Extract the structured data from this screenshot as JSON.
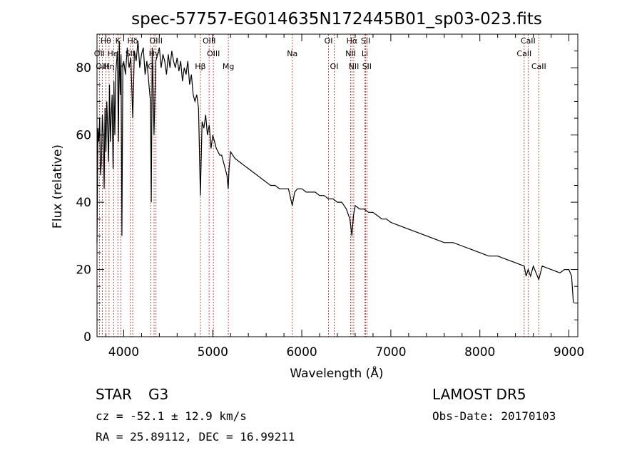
{
  "chart_data": {
    "type": "line",
    "title": "spec-57757-EG014635N172445B01_sp03-023.fits",
    "xlabel": "Wavelength (Å)",
    "ylabel": "Flux (relative)",
    "xlim": [
      3700,
      9100
    ],
    "ylim": [
      0,
      90
    ],
    "xticks": [
      4000,
      5000,
      6000,
      7000,
      8000,
      9000
    ],
    "yticks": [
      0,
      20,
      40,
      60,
      80
    ],
    "grid": false,
    "line_color": "#000000",
    "marker_color": "#b22222",
    "series": [
      {
        "x": [
          3700,
          3710,
          3720,
          3730,
          3740,
          3750,
          3760,
          3770,
          3780,
          3790,
          3800,
          3810,
          3820,
          3830,
          3840,
          3850,
          3860,
          3870,
          3880,
          3890,
          3900,
          3910,
          3920,
          3930,
          3940,
          3950,
          3960,
          3970,
          3980,
          3990,
          4000,
          4020,
          4040,
          4060,
          4080,
          4101,
          4120,
          4140,
          4160,
          4180,
          4200,
          4220,
          4240,
          4260,
          4280,
          4300,
          4310,
          4320,
          4340,
          4360,
          4380,
          4400,
          4420,
          4440,
          4460,
          4480,
          4500,
          4520,
          4540,
          4560,
          4580,
          4600,
          4620,
          4640,
          4660,
          4680,
          4700,
          4720,
          4740,
          4760,
          4780,
          4800,
          4820,
          4840,
          4861,
          4880,
          4900,
          4920,
          4940,
          4960,
          4980,
          5000,
          5020,
          5040,
          5060,
          5080,
          5100,
          5120,
          5140,
          5160,
          5173,
          5183,
          5200,
          5250,
          5300,
          5350,
          5400,
          5450,
          5500,
          5550,
          5600,
          5650,
          5700,
          5750,
          5800,
          5850,
          5893,
          5920,
          5950,
          6000,
          6050,
          6100,
          6150,
          6200,
          6250,
          6300,
          6350,
          6400,
          6450,
          6500,
          6540,
          6563,
          6580,
          6600,
          6650,
          6700,
          6750,
          6800,
          6850,
          6900,
          6950,
          7000,
          7100,
          7200,
          7300,
          7400,
          7500,
          7600,
          7700,
          7800,
          7900,
          8000,
          8100,
          8200,
          8300,
          8400,
          8498,
          8520,
          8542,
          8570,
          8600,
          8662,
          8700,
          8800,
          8900,
          8950,
          9000,
          9030,
          9050
        ],
        "y": [
          28,
          62,
          58,
          65,
          48,
          52,
          66,
          60,
          44,
          68,
          55,
          70,
          62,
          52,
          75,
          58,
          66,
          72,
          50,
          76,
          60,
          78,
          82,
          85,
          58,
          88,
          72,
          84,
          30,
          80,
          82,
          78,
          86,
          80,
          83,
          65,
          85,
          82,
          88,
          80,
          84,
          86,
          78,
          82,
          76,
          70,
          40,
          86,
          60,
          82,
          84,
          86,
          80,
          84,
          82,
          78,
          84,
          80,
          85,
          82,
          80,
          83,
          79,
          82,
          76,
          80,
          78,
          82,
          75,
          78,
          72,
          70,
          72,
          68,
          42,
          64,
          62,
          66,
          60,
          63,
          56,
          60,
          58,
          56,
          55,
          54,
          54,
          52,
          50,
          48,
          44,
          50,
          55,
          53,
          52,
          51,
          50,
          49,
          48,
          47,
          46,
          45,
          45,
          44,
          44,
          44,
          39,
          43,
          44,
          44,
          43,
          43,
          43,
          42,
          42,
          41,
          41,
          40,
          40,
          38,
          35,
          30,
          36,
          39,
          38,
          38,
          37,
          37,
          36,
          35,
          35,
          34,
          33,
          32,
          31,
          30,
          29,
          28,
          28,
          27,
          26,
          25,
          24,
          24,
          23,
          22,
          21,
          18,
          20,
          18,
          21,
          17,
          21,
          20,
          19,
          20,
          20,
          18,
          10
        ]
      }
    ],
    "line_markers": [
      {
        "label": "Hθ",
        "x": 3798,
        "row": 1
      },
      {
        "label": "OII",
        "x": 3727,
        "row": 2
      },
      {
        "label": "OIII",
        "x": 3760,
        "row": 3
      },
      {
        "label": "HeI",
        "x": 3889,
        "row": 2
      },
      {
        "label": "Hη",
        "x": 3835,
        "row": 3
      },
      {
        "label": "K",
        "x": 3934,
        "row": 1
      },
      {
        "label": "H",
        "x": 3969,
        "row": 3
      },
      {
        "label": "Hδ",
        "x": 4101,
        "row": 1
      },
      {
        "label": "SII",
        "x": 4072,
        "row": 2
      },
      {
        "label": "OIII",
        "x": 4363,
        "row": 1
      },
      {
        "label": "Hγ",
        "x": 4341,
        "row": 2
      },
      {
        "label": "G",
        "x": 4305,
        "row": 3
      },
      {
        "label": "OIII",
        "x": 4959,
        "row": 1
      },
      {
        "label": "OIII",
        "x": 5007,
        "row": 2
      },
      {
        "label": "Hβ",
        "x": 4861,
        "row": 3
      },
      {
        "label": "Mg",
        "x": 5175,
        "row": 3
      },
      {
        "label": "Na",
        "x": 5893,
        "row": 2
      },
      {
        "label": "OI",
        "x": 6300,
        "row": 1
      },
      {
        "label": "OI",
        "x": 6364,
        "row": 3
      },
      {
        "label": "Hα",
        "x": 6563,
        "row": 1
      },
      {
        "label": "NII",
        "x": 6548,
        "row": 2
      },
      {
        "label": "NII",
        "x": 6584,
        "row": 3
      },
      {
        "label": "SII",
        "x": 6717,
        "row": 1
      },
      {
        "label": "Li",
        "x": 6708,
        "row": 2
      },
      {
        "label": "SII",
        "x": 6731,
        "row": 3
      },
      {
        "label": "CaII",
        "x": 8542,
        "row": 1
      },
      {
        "label": "CaII",
        "x": 8498,
        "row": 2
      },
      {
        "label": "CaII",
        "x": 8662,
        "row": 3
      }
    ]
  },
  "info": {
    "class": "STAR",
    "subclass": "G3",
    "cz": "cz = -52.1 ± 12.9 km/s",
    "coords": "RA =  25.89112, DEC =  16.99211",
    "survey": "LAMOST DR5",
    "obs_date": "Obs-Date: 20170103"
  }
}
